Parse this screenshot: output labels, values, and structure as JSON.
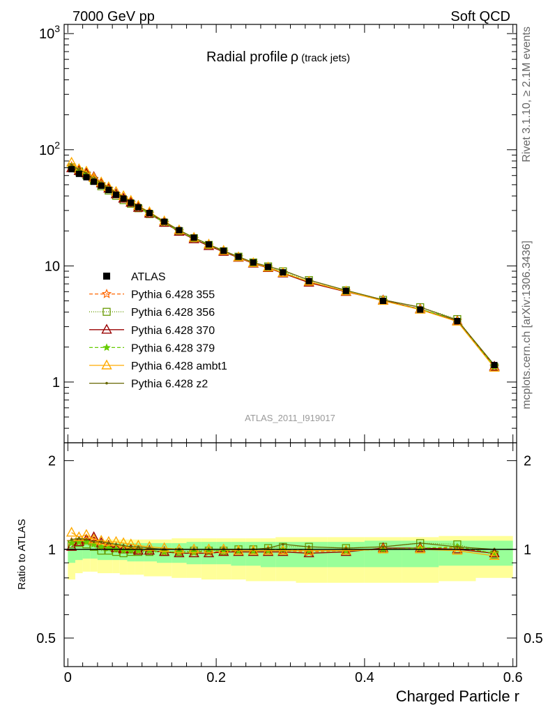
{
  "header": {
    "left": "7000 GeV pp",
    "right": "Soft QCD"
  },
  "side_labels": {
    "top": "Rivet 3.1.10, ≥ 2.1M events",
    "bottom": "mcplots.cern.ch [arXiv:1306.3436]"
  },
  "chart_data": {
    "type": "line",
    "title": "Radial profile",
    "title_symbol": "ρ",
    "title_suffix": "(track jets)",
    "analysis_label": "ATLAS_2011_I919017",
    "xlabel": "Charged Particle r",
    "ylabel_ratio": "Ratio to ATLAS",
    "xlim": [
      -0.005,
      0.605
    ],
    "ylim_main": [
      0.3,
      1200
    ],
    "yscale_main": "log",
    "ylim_ratio": [
      0.4,
      2.3
    ],
    "yscale_ratio": "log",
    "x_ticks": [
      "0",
      "0.2",
      "0.4",
      "0.6"
    ],
    "y_ticks_main": [
      "1",
      "10",
      "10²",
      "10³"
    ],
    "y_ticks_ratio": [
      "0.5",
      "1",
      "2"
    ],
    "legend_position": "middle-left",
    "x": [
      0.005,
      0.015,
      0.025,
      0.035,
      0.045,
      0.055,
      0.065,
      0.075,
      0.085,
      0.095,
      0.11,
      0.13,
      0.15,
      0.17,
      0.19,
      0.21,
      0.23,
      0.25,
      0.27,
      0.29,
      0.325,
      0.375,
      0.425,
      0.475,
      0.525,
      0.575
    ],
    "data": {
      "name": "ATLAS",
      "values": [
        68,
        62,
        58,
        53,
        49,
        45,
        41,
        38,
        35,
        32,
        28.5,
        24,
        20.3,
        17.5,
        15.3,
        13.5,
        12.0,
        10.7,
        9.8,
        8.8,
        7.4,
        6.1,
        5.0,
        4.2,
        3.35,
        1.4
      ],
      "band_stat_lo": [
        0.9,
        0.92,
        0.93,
        0.93,
        0.92,
        0.92,
        0.92,
        0.92,
        0.91,
        0.91,
        0.91,
        0.9,
        0.9,
        0.89,
        0.89,
        0.89,
        0.88,
        0.88,
        0.87,
        0.87,
        0.87,
        0.87,
        0.87,
        0.87,
        0.88,
        0.88
      ],
      "band_stat_hi": [
        1.03,
        1.04,
        1.04,
        1.04,
        1.04,
        1.05,
        1.05,
        1.05,
        1.05,
        1.05,
        1.05,
        1.05,
        1.05,
        1.06,
        1.06,
        1.06,
        1.06,
        1.06,
        1.06,
        1.06,
        1.06,
        1.06,
        1.07,
        1.07,
        1.07,
        1.07
      ],
      "band_syst_lo": [
        0.79,
        0.83,
        0.84,
        0.84,
        0.83,
        0.83,
        0.83,
        0.82,
        0.82,
        0.82,
        0.81,
        0.81,
        0.8,
        0.8,
        0.79,
        0.79,
        0.79,
        0.78,
        0.78,
        0.78,
        0.77,
        0.77,
        0.77,
        0.77,
        0.78,
        0.8
      ],
      "band_syst_hi": [
        1.05,
        1.06,
        1.07,
        1.07,
        1.07,
        1.08,
        1.08,
        1.08,
        1.08,
        1.08,
        1.08,
        1.08,
        1.09,
        1.09,
        1.09,
        1.09,
        1.09,
        1.09,
        1.09,
        1.1,
        1.1,
        1.1,
        1.1,
        1.1,
        1.11,
        1.11
      ]
    },
    "series": [
      {
        "name": "Pythia 6.428 355",
        "color": "#ff6600",
        "marker": "star",
        "dash": "5,3",
        "ratio": [
          1.06,
          1.07,
          1.07,
          1.06,
          1.03,
          1.02,
          1.01,
          1.0,
          1.0,
          0.99,
          0.99,
          0.98,
          0.98,
          0.98,
          0.98,
          0.98,
          0.99,
          0.99,
          0.99,
          0.99,
          0.98,
          0.99,
          1.0,
          1.01,
          1.01,
          0.97
        ]
      },
      {
        "name": "Pythia 6.428 356",
        "color": "#669900",
        "marker": "square",
        "dash": "1,2",
        "ratio": [
          1.04,
          1.05,
          1.04,
          1.02,
          0.99,
          0.99,
          0.98,
          0.97,
          0.98,
          0.98,
          0.98,
          0.98,
          0.98,
          0.99,
          0.99,
          0.99,
          1.0,
          1.0,
          1.01,
          1.02,
          1.02,
          1.01,
          1.02,
          1.05,
          1.04,
          0.96
        ]
      },
      {
        "name": "Pythia 6.428 370",
        "color": "#990000",
        "marker": "triangle",
        "dash": "",
        "ratio": [
          1.02,
          1.06,
          1.08,
          1.1,
          1.05,
          1.03,
          1.01,
          1.0,
          1.0,
          0.99,
          0.99,
          0.98,
          0.97,
          0.97,
          0.97,
          0.98,
          0.98,
          0.98,
          0.98,
          0.98,
          0.97,
          0.98,
          1.01,
          1.01,
          1.0,
          0.97
        ]
      },
      {
        "name": "Pythia 6.428 379",
        "color": "#66cc00",
        "marker": "smallstar",
        "dash": "5,3",
        "ratio": [
          1.05,
          1.06,
          1.06,
          1.04,
          1.02,
          1.01,
          1.0,
          0.99,
          0.99,
          0.99,
          0.99,
          0.98,
          0.98,
          0.98,
          0.99,
          0.99,
          0.99,
          0.99,
          0.99,
          1.0,
          0.99,
          0.99,
          1.0,
          1.01,
          1.02,
          0.97
        ]
      },
      {
        "name": "Pythia 6.428 ambt1",
        "color": "#ffaa00",
        "marker": "triangle",
        "dash": "",
        "ratio": [
          1.14,
          1.1,
          1.12,
          1.08,
          1.07,
          1.06,
          1.06,
          1.05,
          1.04,
          1.03,
          1.02,
          1.01,
          1.0,
          1.0,
          1.0,
          1.0,
          0.99,
          0.99,
          0.99,
          0.99,
          0.99,
          0.99,
          1.0,
          1.0,
          0.99,
          0.95
        ]
      },
      {
        "name": "Pythia 6.428 z2",
        "color": "#666600",
        "marker": "dot",
        "dash": "",
        "ratio": [
          1.08,
          1.09,
          1.08,
          1.06,
          1.06,
          1.05,
          1.04,
          1.03,
          1.02,
          1.02,
          1.01,
          1.0,
          1.0,
          1.0,
          1.0,
          1.0,
          1.0,
          1.0,
          1.01,
          1.04,
          1.02,
          1.01,
          1.02,
          1.05,
          1.02,
          1.0
        ]
      }
    ]
  }
}
